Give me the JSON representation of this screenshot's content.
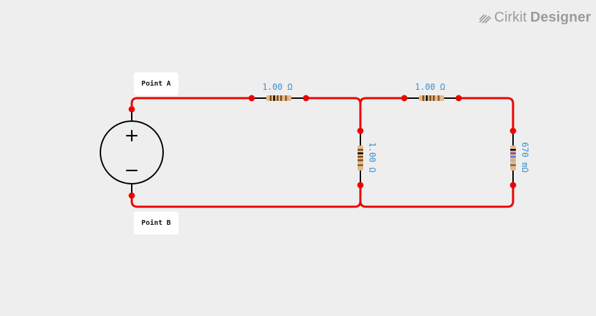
{
  "brand": {
    "name": "Cirkit",
    "product": "Designer",
    "icon": "cirkit-logo-icon"
  },
  "labels": {
    "point_a": "Point A",
    "point_b": "Point B"
  },
  "source": {
    "plus": "+",
    "minus": "−"
  },
  "resistors": [
    {
      "id": "r1",
      "value": "1.00 Ω"
    },
    {
      "id": "r2",
      "value": "1.00 Ω"
    },
    {
      "id": "r3",
      "value": "1.00 Ω"
    },
    {
      "id": "r4",
      "value": "670 mΩ"
    }
  ],
  "colors": {
    "wire": "#ee0000",
    "node": "#ee0000",
    "lead": "#000000",
    "value_text": "#3a8fd0",
    "resistor_body": "#e2b98a"
  }
}
